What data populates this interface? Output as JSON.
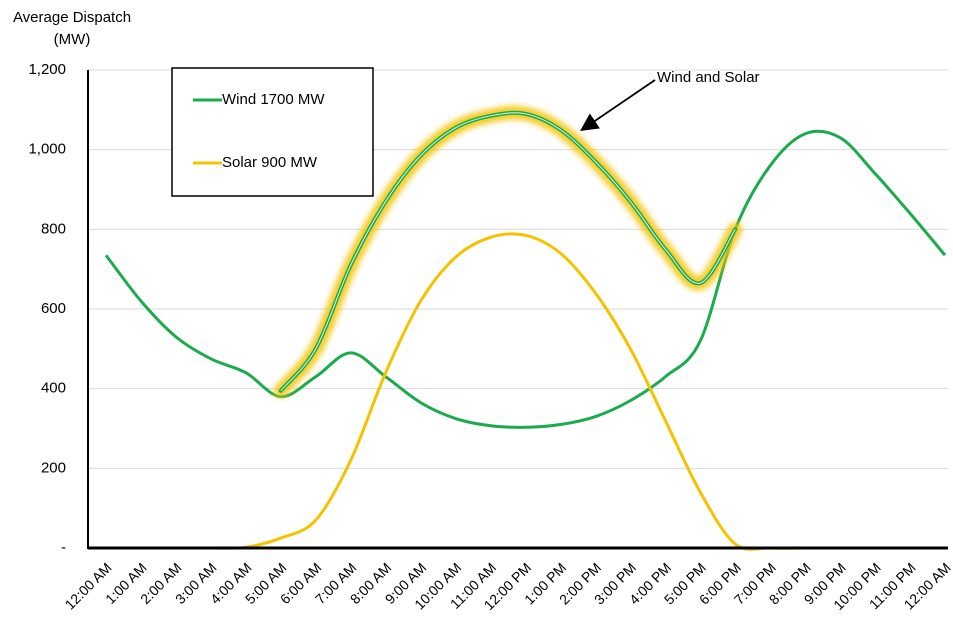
{
  "chart_data": {
    "type": "line",
    "ylabel_lines": [
      "Average Dispatch",
      "(MW)"
    ],
    "categories": [
      "12:00 AM",
      "1:00 AM",
      "2:00 AM",
      "3:00 AM",
      "4:00 AM",
      "5:00 AM",
      "6:00 AM",
      "7:00 AM",
      "8:00 AM",
      "9:00 AM",
      "10:00 AM",
      "11:00 AM",
      "12:00 PM",
      "1:00 PM",
      "2:00 PM",
      "3:00 PM",
      "4:00 PM",
      "5:00 PM",
      "6:00 PM",
      "7:00 PM",
      "8:00 PM",
      "9:00 PM",
      "10:00 PM",
      "11:00 PM",
      "12:00 AM"
    ],
    "series": [
      {
        "name": "Wind 1700 MW",
        "color": "#1aab4b",
        "values": [
          735,
          620,
          530,
          475,
          440,
          380,
          430,
          490,
          430,
          365,
          325,
          307,
          303,
          310,
          330,
          370,
          430,
          520,
          800,
          960,
          1040,
          1030,
          940,
          840,
          735
        ]
      },
      {
        "name": "Solar 900 MW",
        "color": "#f5c200",
        "values": [
          0,
          0,
          0,
          0,
          2,
          25,
          70,
          220,
          440,
          620,
          730,
          780,
          785,
          740,
          640,
          500,
          320,
          140,
          10,
          0,
          0,
          0,
          0,
          0,
          0
        ]
      }
    ],
    "highlight": {
      "label": "Wind and Solar",
      "color": "#1aab4b",
      "glow": "#f5c200",
      "values": [
        null,
        null,
        null,
        null,
        null,
        395,
        500,
        710,
        870,
        985,
        1055,
        1085,
        1090,
        1050,
        970,
        870,
        750,
        665,
        800,
        null,
        null,
        null,
        null,
        null,
        null
      ]
    },
    "ylim": [
      0,
      1200
    ],
    "yticks": [
      {
        "value": 0,
        "label": "-"
      },
      200,
      400,
      600,
      800,
      {
        "value": 1000,
        "label": "1,000"
      },
      {
        "value": 1200,
        "label": "1,200"
      }
    ],
    "grid": true
  }
}
